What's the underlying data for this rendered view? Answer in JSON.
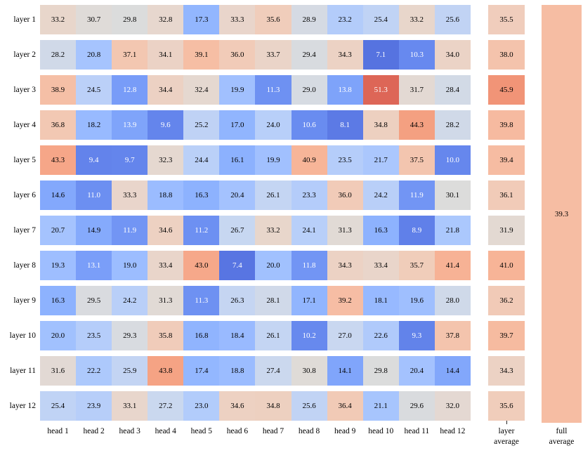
{
  "chart_data": {
    "type": "heatmap",
    "title": "",
    "row_labels": [
      "layer 1",
      "layer 2",
      "layer 3",
      "layer 4",
      "layer 5",
      "layer 6",
      "layer 7",
      "layer 8",
      "layer 9",
      "layer 10",
      "layer 11",
      "layer 12"
    ],
    "col_labels": [
      "head 1",
      "head 2",
      "head 3",
      "head 4",
      "head 5",
      "head 6",
      "head 7",
      "head 8",
      "head 9",
      "head 10",
      "head 11",
      "head 12"
    ],
    "values": [
      [
        33.2,
        30.7,
        29.8,
        32.8,
        17.3,
        33.3,
        35.6,
        28.9,
        23.2,
        25.4,
        33.2,
        25.6
      ],
      [
        28.2,
        20.8,
        37.1,
        34.1,
        39.1,
        36.0,
        33.7,
        29.4,
        34.3,
        7.1,
        10.3,
        34.0
      ],
      [
        38.9,
        24.5,
        12.8,
        34.4,
        32.4,
        19.9,
        11.3,
        29.0,
        13.8,
        51.3,
        31.7,
        28.4
      ],
      [
        36.8,
        18.2,
        13.9,
        9.6,
        25.2,
        17.0,
        24.0,
        10.6,
        8.1,
        34.8,
        44.3,
        28.2
      ],
      [
        43.3,
        9.4,
        9.7,
        32.3,
        24.4,
        16.1,
        19.9,
        40.9,
        23.5,
        21.7,
        37.5,
        10.0
      ],
      [
        14.6,
        11.0,
        33.3,
        18.8,
        16.3,
        20.4,
        26.1,
        23.3,
        36.0,
        24.2,
        11.9,
        30.1
      ],
      [
        20.7,
        14.9,
        11.9,
        34.6,
        11.2,
        26.7,
        33.2,
        24.1,
        31.3,
        16.3,
        8.9,
        21.8
      ],
      [
        19.3,
        13.1,
        19.0,
        33.4,
        43.0,
        7.4,
        20.0,
        11.8,
        34.3,
        33.4,
        35.7,
        41.4
      ],
      [
        16.3,
        29.5,
        24.2,
        31.3,
        11.3,
        26.3,
        28.1,
        17.1,
        39.2,
        18.1,
        19.6,
        28.0
      ],
      [
        20.0,
        23.5,
        29.3,
        35.8,
        16.8,
        18.4,
        26.1,
        10.2,
        27.0,
        22.6,
        9.3,
        37.8
      ],
      [
        31.6,
        22.2,
        25.9,
        43.8,
        17.4,
        18.8,
        27.4,
        30.8,
        14.1,
        29.8,
        20.4,
        14.4
      ],
      [
        25.4,
        23.9,
        33.1,
        27.2,
        23.0,
        34.6,
        34.8,
        25.6,
        36.4,
        21.1,
        29.6,
        32.0
      ]
    ],
    "layer_average": {
      "label_lines": [
        "layer",
        "average"
      ],
      "values": [
        35.5,
        38.0,
        45.9,
        39.8,
        39.4,
        36.1,
        31.9,
        41.0,
        36.2,
        39.7,
        34.3,
        35.6
      ]
    },
    "full_average": {
      "label_lines": [
        "full",
        "average"
      ],
      "value": "39.3"
    },
    "colormap": {
      "name": "coolwarm",
      "vmin": 2,
      "vmax": 58
    },
    "value_format": "one-decimal",
    "text_color_rule": {
      "white_text_below": 14,
      "white_text_above": 50
    },
    "colors": {
      "background": "#ffffff",
      "text": "#000000",
      "white_cell_text": "#ffffff"
    },
    "layout_hints": {
      "grid": "off",
      "legend": "none",
      "row_gap_white": true
    }
  }
}
